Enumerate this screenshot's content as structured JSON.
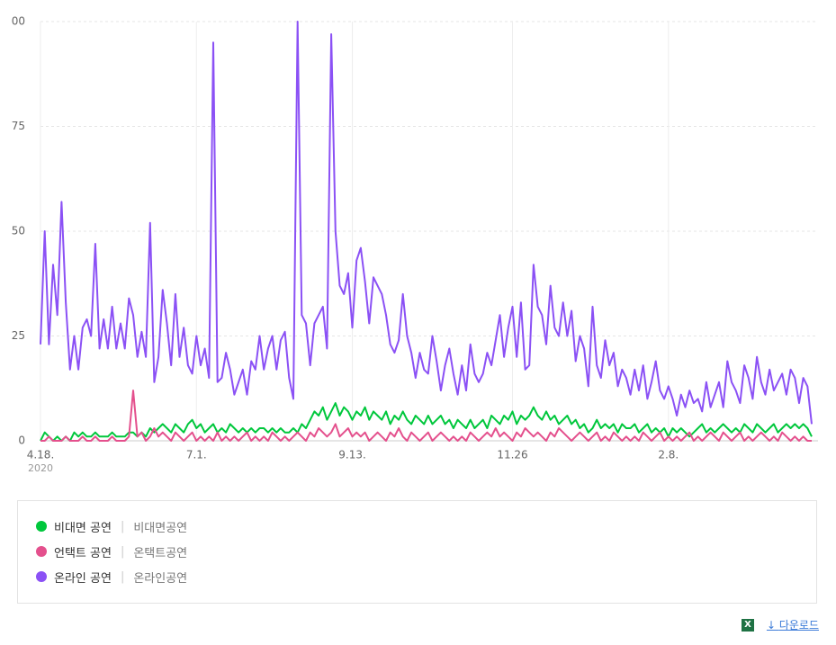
{
  "chart_data": {
    "type": "line",
    "categories": [
      "4.18.",
      null,
      null,
      null,
      null,
      null,
      null,
      null,
      null,
      null,
      null,
      null,
      null,
      null,
      null,
      null,
      null,
      null,
      null,
      null,
      null,
      null,
      null,
      null,
      null,
      null,
      null,
      null,
      null,
      null,
      null,
      null,
      null,
      null,
      null,
      null,
      null,
      "7.1.",
      null,
      null,
      null,
      null,
      null,
      null,
      null,
      null,
      null,
      null,
      null,
      null,
      null,
      null,
      null,
      null,
      null,
      null,
      null,
      null,
      null,
      null,
      null,
      null,
      null,
      null,
      null,
      null,
      null,
      null,
      null,
      null,
      null,
      null,
      null,
      null,
      "9.13.",
      null,
      null,
      null,
      null,
      null,
      null,
      null,
      null,
      null,
      null,
      null,
      null,
      null,
      null,
      null,
      null,
      null,
      null,
      null,
      null,
      null,
      null,
      null,
      null,
      null,
      null,
      null,
      null,
      null,
      null,
      null,
      null,
      null,
      null,
      null,
      null,
      null,
      "11.26",
      null,
      null,
      null,
      null,
      null,
      null,
      null,
      null,
      null,
      null,
      null,
      null,
      null,
      null,
      null,
      null,
      null,
      null,
      null,
      null,
      null,
      null,
      null,
      null,
      null,
      null,
      null,
      null,
      null,
      null,
      null,
      null,
      null,
      null,
      null,
      null,
      "2.8.",
      null,
      null,
      null,
      null,
      null,
      null,
      null,
      null,
      null,
      null,
      null,
      null,
      null,
      null,
      null,
      null,
      null,
      null,
      null,
      null,
      null,
      null,
      null,
      null,
      null,
      null,
      null,
      null,
      null,
      null,
      null,
      null,
      null,
      null
    ],
    "x_sublabel": "2020",
    "ylim": [
      0,
      100
    ],
    "yticks": [
      0,
      25,
      50,
      75,
      {
        "value": 100,
        "label": "00"
      }
    ],
    "grid": true,
    "series": [
      {
        "name": "비대면 공연",
        "keyword": "비대면공연",
        "color": "#00c73c",
        "values": [
          0,
          2,
          1,
          0,
          1,
          0,
          1,
          0,
          2,
          1,
          2,
          1,
          1,
          2,
          1,
          1,
          1,
          2,
          1,
          1,
          1,
          2,
          2,
          1,
          2,
          1,
          3,
          2,
          3,
          4,
          3,
          2,
          4,
          3,
          2,
          4,
          5,
          3,
          4,
          2,
          3,
          4,
          2,
          3,
          2,
          4,
          3,
          2,
          3,
          2,
          3,
          2,
          3,
          3,
          2,
          3,
          2,
          3,
          2,
          2,
          3,
          2,
          4,
          3,
          5,
          7,
          6,
          8,
          5,
          7,
          9,
          6,
          8,
          7,
          5,
          7,
          6,
          8,
          5,
          7,
          6,
          5,
          7,
          4,
          6,
          5,
          7,
          5,
          4,
          6,
          5,
          4,
          6,
          4,
          5,
          6,
          4,
          5,
          3,
          5,
          4,
          3,
          5,
          3,
          4,
          5,
          3,
          6,
          5,
          4,
          6,
          5,
          7,
          4,
          6,
          5,
          6,
          8,
          6,
          5,
          7,
          5,
          6,
          4,
          5,
          6,
          4,
          5,
          3,
          4,
          2,
          3,
          5,
          3,
          4,
          3,
          4,
          2,
          4,
          3,
          3,
          4,
          2,
          3,
          4,
          2,
          3,
          2,
          3,
          1,
          3,
          2,
          3,
          2,
          1,
          2,
          3,
          4,
          2,
          3,
          2,
          3,
          4,
          3,
          2,
          3,
          2,
          4,
          3,
          2,
          4,
          3,
          2,
          3,
          4,
          2,
          3,
          4,
          3,
          4,
          3,
          4,
          3,
          1
        ]
      },
      {
        "name": "언택트 공연",
        "keyword": "온택트공연",
        "color": "#e4508d",
        "values": [
          0,
          0,
          1,
          0,
          0,
          0,
          1,
          0,
          0,
          0,
          1,
          0,
          0,
          1,
          0,
          0,
          0,
          1,
          0,
          0,
          0,
          1,
          12,
          1,
          2,
          0,
          1,
          3,
          1,
          2,
          1,
          0,
          2,
          1,
          0,
          1,
          2,
          0,
          1,
          0,
          1,
          0,
          2,
          0,
          1,
          0,
          1,
          0,
          1,
          2,
          0,
          1,
          0,
          1,
          0,
          2,
          1,
          0,
          1,
          0,
          1,
          2,
          1,
          0,
          2,
          1,
          3,
          2,
          1,
          2,
          4,
          1,
          2,
          3,
          1,
          2,
          1,
          2,
          0,
          1,
          2,
          1,
          0,
          2,
          1,
          3,
          1,
          0,
          2,
          1,
          0,
          1,
          2,
          0,
          1,
          2,
          1,
          0,
          1,
          0,
          1,
          0,
          2,
          1,
          0,
          1,
          2,
          1,
          3,
          1,
          2,
          1,
          0,
          2,
          1,
          3,
          2,
          1,
          2,
          1,
          0,
          2,
          1,
          3,
          2,
          1,
          0,
          1,
          2,
          1,
          0,
          1,
          2,
          0,
          1,
          0,
          2,
          1,
          0,
          1,
          0,
          1,
          0,
          2,
          1,
          0,
          1,
          2,
          0,
          1,
          0,
          1,
          0,
          1,
          2,
          0,
          1,
          0,
          1,
          2,
          1,
          0,
          2,
          1,
          0,
          1,
          2,
          0,
          1,
          0,
          1,
          2,
          1,
          0,
          1,
          0,
          2,
          1,
          0,
          1,
          0,
          1,
          0,
          0
        ]
      },
      {
        "name": "온라인 공연",
        "keyword": "온라인공연",
        "color": "#8b51f5",
        "values": [
          23,
          50,
          23,
          42,
          30,
          57,
          33,
          17,
          25,
          17,
          27,
          29,
          25,
          47,
          22,
          29,
          22,
          32,
          22,
          28,
          22,
          34,
          30,
          20,
          26,
          20,
          52,
          14,
          20,
          36,
          28,
          18,
          35,
          20,
          27,
          18,
          16,
          25,
          18,
          22,
          15,
          95,
          14,
          15,
          21,
          17,
          11,
          14,
          17,
          11,
          19,
          17,
          25,
          17,
          22,
          25,
          17,
          24,
          26,
          15,
          10,
          100,
          30,
          28,
          18,
          28,
          30,
          32,
          22,
          97,
          50,
          37,
          35,
          40,
          27,
          43,
          46,
          38,
          28,
          39,
          37,
          35,
          30,
          23,
          21,
          24,
          35,
          25,
          21,
          15,
          21,
          17,
          16,
          25,
          19,
          12,
          18,
          22,
          16,
          11,
          18,
          12,
          23,
          16,
          14,
          16,
          21,
          18,
          24,
          30,
          20,
          27,
          32,
          20,
          33,
          17,
          18,
          42,
          32,
          30,
          23,
          37,
          27,
          25,
          33,
          25,
          31,
          19,
          25,
          22,
          13,
          32,
          18,
          15,
          24,
          18,
          21,
          13,
          17,
          15,
          11,
          17,
          12,
          18,
          10,
          14,
          19,
          12,
          10,
          13,
          10,
          6,
          11,
          8,
          12,
          9,
          10,
          7,
          14,
          8,
          11,
          14,
          8,
          19,
          14,
          12,
          9,
          18,
          15,
          10,
          20,
          14,
          11,
          17,
          12,
          14,
          16,
          11,
          17,
          15,
          9,
          15,
          13,
          4
        ]
      }
    ]
  },
  "footer": {
    "download": "다운로드"
  }
}
